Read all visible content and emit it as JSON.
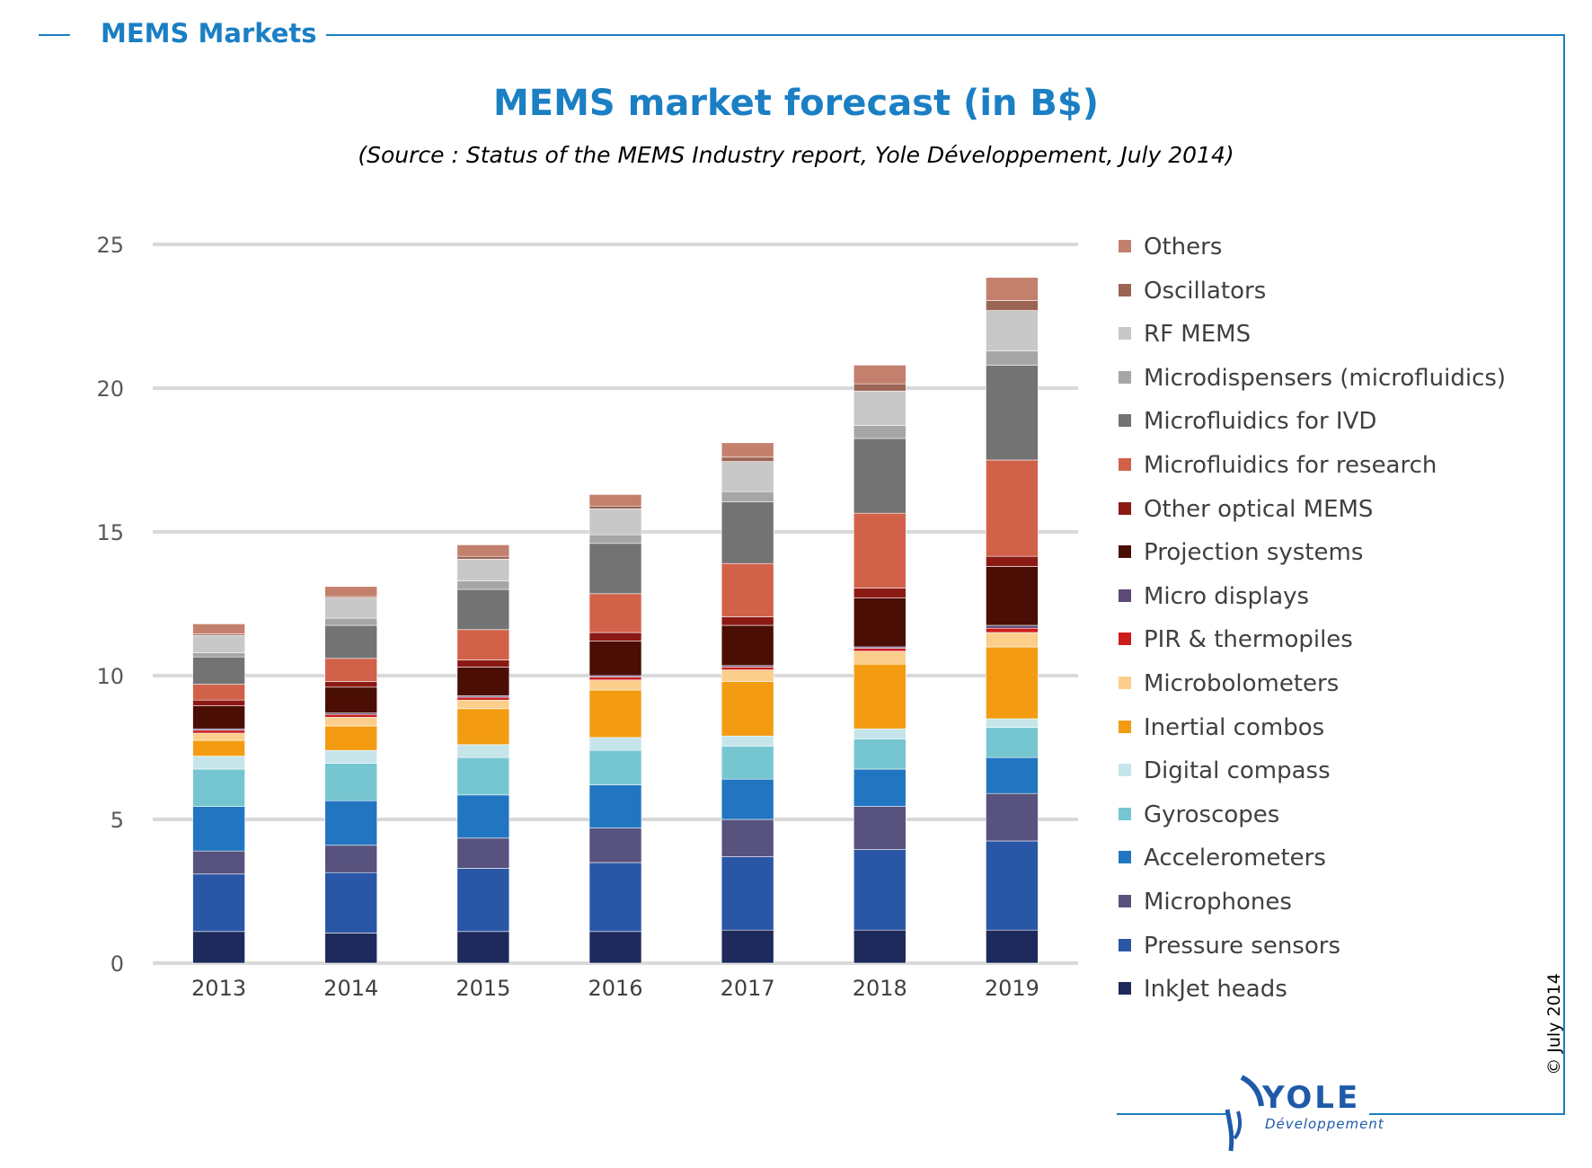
{
  "header": {
    "section_title": "MEMS Markets"
  },
  "copyright": "© July 2014",
  "logo": {
    "word": "YOLE",
    "sub": "Développement"
  },
  "colors": {
    "accent": "#1b7fc4",
    "logo": "#1e5aa8"
  },
  "chart_data": {
    "type": "bar",
    "stacked": true,
    "title": "MEMS market forecast (in B$)",
    "subtitle": "(Source : Status of the MEMS Industry report, Yole Développement, July 2014)",
    "xlabel": "",
    "ylabel": "",
    "ylim": [
      0,
      25
    ],
    "yticks": [
      0,
      5,
      10,
      15,
      20,
      25
    ],
    "grid": true,
    "legend_position": "right",
    "categories": [
      "2013",
      "2014",
      "2015",
      "2016",
      "2017",
      "2018",
      "2019"
    ],
    "series": [
      {
        "name": "InkJet heads",
        "color": "#1f2a5c",
        "values": [
          1.1,
          1.05,
          1.1,
          1.1,
          1.15,
          1.15,
          1.15
        ]
      },
      {
        "name": "Pressure sensors",
        "color": "#2a56a6",
        "values": [
          2.0,
          2.1,
          2.2,
          2.4,
          2.55,
          2.8,
          3.1
        ]
      },
      {
        "name": "Microphones",
        "color": "#57527e",
        "values": [
          0.8,
          0.95,
          1.05,
          1.2,
          1.3,
          1.5,
          1.65
        ]
      },
      {
        "name": "Accelerometers",
        "color": "#2276c1",
        "values": [
          1.55,
          1.55,
          1.5,
          1.5,
          1.4,
          1.3,
          1.25
        ]
      },
      {
        "name": "Gyroscopes",
        "color": "#76c6d1",
        "values": [
          1.3,
          1.3,
          1.3,
          1.2,
          1.15,
          1.05,
          1.05
        ]
      },
      {
        "name": "Digital compass",
        "color": "#c6e5ea",
        "values": [
          0.45,
          0.45,
          0.45,
          0.45,
          0.35,
          0.35,
          0.3
        ]
      },
      {
        "name": "Inertial combos",
        "color": "#f39c12",
        "values": [
          0.55,
          0.85,
          1.25,
          1.65,
          1.9,
          2.25,
          2.5
        ]
      },
      {
        "name": "Microbolometers",
        "color": "#fbce8c",
        "values": [
          0.25,
          0.3,
          0.3,
          0.35,
          0.4,
          0.45,
          0.5
        ]
      },
      {
        "name": "PIR & thermopiles",
        "color": "#cc1c1c",
        "values": [
          0.1,
          0.1,
          0.1,
          0.1,
          0.1,
          0.1,
          0.15
        ]
      },
      {
        "name": "Micro displays",
        "color": "#5b4a78",
        "values": [
          0.05,
          0.05,
          0.05,
          0.05,
          0.05,
          0.05,
          0.1
        ]
      },
      {
        "name": "Projection systems",
        "color": "#4a0e04",
        "values": [
          0.8,
          0.9,
          1.0,
          1.2,
          1.4,
          1.7,
          2.05
        ]
      },
      {
        "name": "Other optical MEMS",
        "color": "#8b1a14",
        "values": [
          0.2,
          0.2,
          0.25,
          0.3,
          0.3,
          0.35,
          0.35
        ]
      },
      {
        "name": "Microfluidics for research",
        "color": "#d2614a",
        "values": [
          0.55,
          0.8,
          1.05,
          1.35,
          1.85,
          2.6,
          3.35
        ]
      },
      {
        "name": "Microfluidics for IVD",
        "color": "#737373",
        "values": [
          0.95,
          1.15,
          1.4,
          1.75,
          2.15,
          2.6,
          3.3
        ]
      },
      {
        "name": "Microdispensers (microfluidics)",
        "color": "#a6a6a6",
        "values": [
          0.15,
          0.25,
          0.3,
          0.3,
          0.35,
          0.45,
          0.5
        ]
      },
      {
        "name": "RF MEMS",
        "color": "#c8c8c8",
        "values": [
          0.6,
          0.7,
          0.75,
          0.9,
          1.05,
          1.2,
          1.4
        ]
      },
      {
        "name": "Oscillators",
        "color": "#9c6454",
        "values": [
          0.05,
          0.05,
          0.1,
          0.1,
          0.15,
          0.25,
          0.35
        ]
      },
      {
        "name": "Others",
        "color": "#c3806c",
        "values": [
          0.35,
          0.35,
          0.4,
          0.4,
          0.5,
          0.65,
          0.8
        ]
      }
    ]
  }
}
